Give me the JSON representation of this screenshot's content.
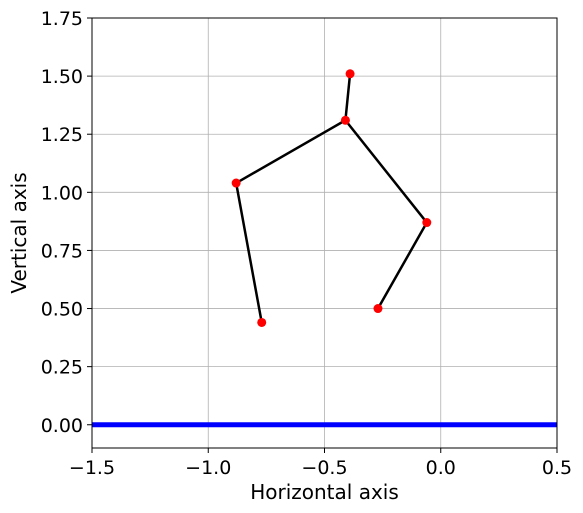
{
  "chart_data": {
    "type": "line",
    "xlabel": "Horizontal axis",
    "ylabel": "Vertical axis",
    "xlim": [
      -1.5,
      0.5
    ],
    "ylim": [
      -0.1,
      1.75
    ],
    "grid": true,
    "xticks": [
      -1.5,
      -1.0,
      -0.5,
      0.0,
      0.5
    ],
    "xtick_labels": [
      "−1.5",
      "−1.0",
      "−0.5",
      "0.0",
      "0.5"
    ],
    "yticks": [
      0.0,
      0.25,
      0.5,
      0.75,
      1.0,
      1.25,
      1.5,
      1.75
    ],
    "ytick_labels": [
      "0.00",
      "0.25",
      "0.50",
      "0.75",
      "1.00",
      "1.25",
      "1.50",
      "1.75"
    ],
    "ground_line": {
      "y": 0.0,
      "color": "#0000ff"
    },
    "segments": [
      {
        "from": [
          -0.39,
          1.51
        ],
        "to": [
          -0.41,
          1.31
        ]
      },
      {
        "from": [
          -0.41,
          1.31
        ],
        "to": [
          -0.88,
          1.04
        ]
      },
      {
        "from": [
          -0.88,
          1.04
        ],
        "to": [
          -0.77,
          0.44
        ]
      },
      {
        "from": [
          -0.41,
          1.31
        ],
        "to": [
          -0.06,
          0.87
        ]
      },
      {
        "from": [
          -0.06,
          0.87
        ],
        "to": [
          -0.27,
          0.5
        ]
      }
    ],
    "points": [
      {
        "x": -0.39,
        "y": 1.51
      },
      {
        "x": -0.41,
        "y": 1.31
      },
      {
        "x": -0.88,
        "y": 1.04
      },
      {
        "x": -0.77,
        "y": 0.44
      },
      {
        "x": -0.06,
        "y": 0.87
      },
      {
        "x": -0.27,
        "y": 0.5
      }
    ],
    "line_color": "#000000",
    "point_color": "#ff0000"
  }
}
